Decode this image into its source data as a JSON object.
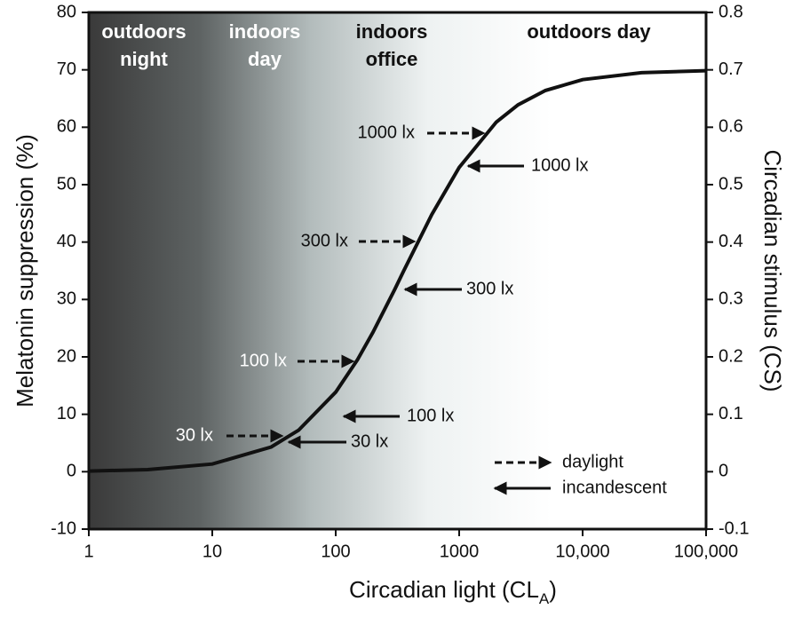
{
  "chart_data": {
    "type": "line",
    "xlabel": [
      "Circadian light (CL",
      "A",
      ")"
    ],
    "ylabel": "Melatonin suppression (%)",
    "y2label": "Circadian stimulus (CS)",
    "xscale": "log",
    "xlim": [
      1,
      100000
    ],
    "xticks": [
      1,
      10,
      100,
      1000,
      {
        "value": 10000,
        "label": "10,000"
      },
      {
        "value": 100000,
        "label": "100,000"
      }
    ],
    "ylim": [
      -10,
      80
    ],
    "yticks": [
      -10,
      0,
      10,
      20,
      30,
      40,
      50,
      60,
      70,
      80
    ],
    "y2lim": [
      -0.1,
      0.8
    ],
    "y2ticks": [
      -0.1,
      0,
      0.1,
      0.2,
      0.3,
      0.4,
      0.5,
      0.6,
      0.7,
      0.8
    ],
    "color": "#111111",
    "x": [
      1,
      3,
      10,
      30,
      50,
      100,
      150,
      200,
      300,
      355.7,
      600,
      1000,
      2000,
      3000,
      5000,
      10000,
      30000,
      100000
    ],
    "values": [
      0.11,
      0.36,
      1.34,
      4.3,
      7.22,
      13.86,
      19.5,
      24.25,
      31.7,
      35,
      44.8,
      53,
      60.9,
      63.9,
      66.4,
      68.3,
      69.5,
      69.86
    ],
    "regions": [
      {
        "lines": [
          "outdoors",
          "night"
        ]
      },
      {
        "lines": [
          "indoors",
          "day"
        ]
      },
      {
        "lines": [
          "indoors",
          "office"
        ]
      },
      {
        "lines": [
          "outdoors day"
        ]
      }
    ],
    "annotations": [
      {
        "text": "30 lx",
        "style": "dashed"
      },
      {
        "text": "30 lx",
        "style": "solid"
      },
      {
        "text": "100 lx",
        "style": "dashed"
      },
      {
        "text": "100 lx",
        "style": "solid"
      },
      {
        "text": "300 lx",
        "style": "dashed"
      },
      {
        "text": "300 lx",
        "style": "solid"
      },
      {
        "text": "1000 lx",
        "style": "dashed"
      },
      {
        "text": "1000 lx",
        "style": "solid"
      }
    ],
    "legend": [
      {
        "label": "daylight",
        "style": "dashed"
      },
      {
        "label": "incandescent",
        "style": "solid"
      }
    ]
  }
}
